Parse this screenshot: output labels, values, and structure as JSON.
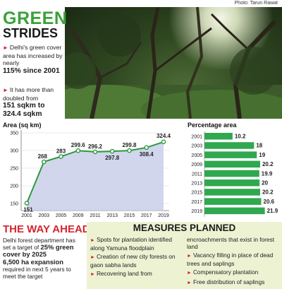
{
  "credit": "Photo: Tarun Rawat",
  "hero": {
    "title_line1": "GREEN",
    "title_line2": "STRIDES",
    "bullet1_text": "Delhi's green cover area has increased by nearly",
    "bullet1_highlight": "115% since 2001",
    "bullet2_text": "It has more than doubled from",
    "bullet2_highlight": "151 sqkm to 324.4 sqkm"
  },
  "way_ahead": {
    "title": "THE WAY AHEAD",
    "text1": "Delhi forest department has set a target of",
    "highlight1": "25% green cover by 2025",
    "highlight2": "6,500 ha expansion",
    "text2": "required in next 5 years to meet the target"
  },
  "measures": {
    "title": "MEASURES PLANNED",
    "left_items": [
      "Spots for plantation identified along Yamuna floodplain",
      "Creation of new city forests on gaon sabha lands",
      "Recovering land from"
    ],
    "right_continuation": "encroachments that exist in forest land",
    "right_items": [
      "Vacancy filling in place of dead trees and saplings",
      "Compensatory plantation",
      "Free distribution of saplings"
    ]
  },
  "colors": {
    "green_title": "#3aa23a",
    "accent_red": "#d3262e",
    "line_green": "#2e9a3e",
    "area_fill": "#c9cfea",
    "bar_green": "#2fa84f",
    "measures_bg": "#edf2d2"
  },
  "chart_data": [
    {
      "type": "area",
      "title": "Area (sq km)",
      "x": [
        "2001",
        "2003",
        "2005",
        "2009",
        "2011",
        "2013",
        "2015",
        "2017",
        "2019"
      ],
      "values": [
        151,
        268,
        283,
        299.6,
        296.2,
        297.8,
        299.8,
        308.4,
        324.4
      ],
      "labels": [
        "151",
        "268",
        "283",
        "299.6",
        "296.2",
        "297.8",
        "299.8",
        "308.4",
        "324.4"
      ],
      "y_ticks": [
        "150",
        "200",
        "250",
        "300",
        "350"
      ],
      "ylim": [
        130,
        350
      ],
      "grid": true
    },
    {
      "type": "bar",
      "title": "Percentage area",
      "categories": [
        "2001",
        "2003",
        "2005",
        "2009",
        "2011",
        "2013",
        "2015",
        "2017",
        "2019"
      ],
      "values": [
        10.2,
        18,
        19,
        20.2,
        19.9,
        20,
        20.2,
        20.6,
        21.9
      ],
      "labels": [
        "10.2",
        "18",
        "19",
        "20.2",
        "19.9",
        "20",
        "20.2",
        "20.6",
        "21.9"
      ],
      "orientation": "horizontal",
      "xlim": [
        0,
        22
      ]
    }
  ]
}
